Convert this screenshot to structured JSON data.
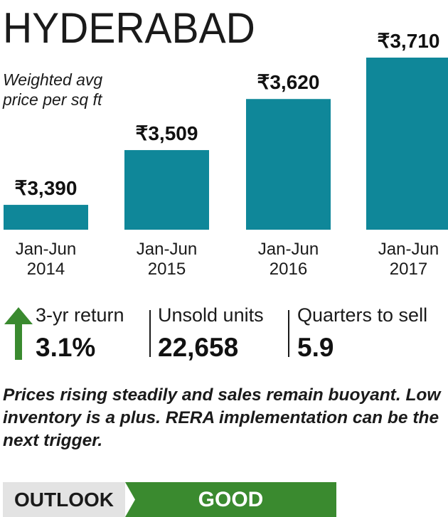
{
  "header": {
    "title": "HYDERABAD",
    "subtitle": "Weighted avg price per sq ft"
  },
  "chart_data": {
    "type": "bar",
    "title": "HYDERABAD",
    "subtitle": "Weighted avg price per sq ft",
    "categories": [
      [
        "Jan-Jun",
        "2014"
      ],
      [
        "Jan-Jun",
        "2015"
      ],
      [
        "Jan-Jun",
        "2016"
      ],
      [
        "Jan-Jun",
        "2017"
      ]
    ],
    "values": [
      3390,
      3509,
      3620,
      3710
    ],
    "value_labels": [
      "₹3,390",
      "₹3,509",
      "₹3,620",
      "₹3,710"
    ],
    "bar_color": "#0f8799",
    "grid": false,
    "legend": "none"
  },
  "stats": [
    {
      "label": "3-yr return",
      "value": "3.1%"
    },
    {
      "label": "Unsold units",
      "value": "22,658"
    },
    {
      "label": "Quarters to sell",
      "value": "5.9"
    }
  ],
  "arrow": {
    "icon": "up-arrow-icon",
    "color": "#3a8a2f"
  },
  "note": "Prices rising steadily and sales remain buoyant. Low inventory is a plus. RERA implementation can be the next trigger.",
  "outlook": {
    "label": "OUTLOOK",
    "value": "GOOD",
    "label_bg": "#e3e3e3",
    "value_bg": "#3a8a2f"
  }
}
